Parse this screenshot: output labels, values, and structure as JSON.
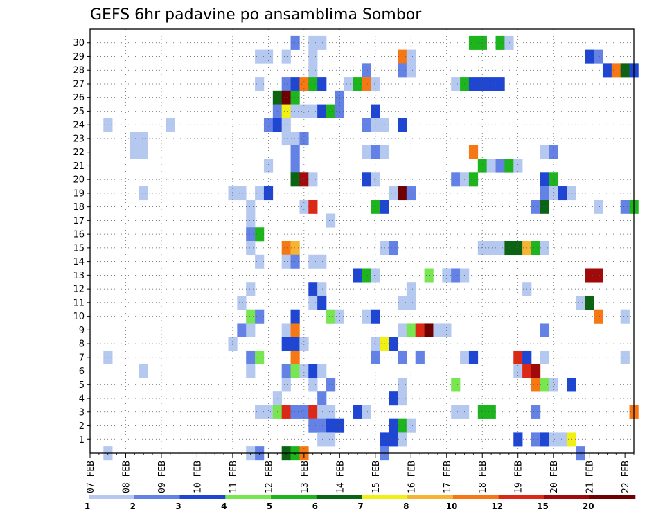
{
  "chart_data": {
    "type": "heatmap",
    "title": "GEFS 6hr padavine po ansamblima Sombor",
    "xlabel": "",
    "ylabel": "",
    "x_ticks": [
      "07 FEB",
      "08 FEB",
      "09 FEB",
      "10 FEB",
      "11 FEB",
      "12 FEB",
      "13 FEB",
      "14 FEB",
      "15 FEB",
      "16 FEB",
      "17 FEB",
      "18 FEB",
      "19 FEB",
      "20 FEB",
      "21 FEB",
      "22 FEB"
    ],
    "y_ticks": [
      "1",
      "2",
      "3",
      "4",
      "5",
      "6",
      "7",
      "8",
      "9",
      "10",
      "11",
      "12",
      "13",
      "14",
      "15",
      "16",
      "17",
      "18",
      "19",
      "20",
      "21",
      "22",
      "23",
      "24",
      "25",
      "26",
      "27",
      "28",
      "29",
      "30"
    ],
    "time_steps": 61,
    "members": 31,
    "colorbar": {
      "labels": [
        "1",
        "2",
        "3",
        "4",
        "5",
        "6",
        "7",
        "8",
        "10",
        "12",
        "15",
        "20"
      ],
      "colors": [
        "#b4c8f0",
        "#6482e6",
        "#1e46d2",
        "#78e650",
        "#1eb41e",
        "#0a6414",
        "#f0f014",
        "#f5b432",
        "#f57814",
        "#dc2814",
        "#a00a0a",
        "#6e0000"
      ]
    },
    "grid": true,
    "cells": [
      [
        30,
        23,
        2
      ],
      [
        30,
        25,
        1
      ],
      [
        30,
        26,
        1
      ],
      [
        30,
        43,
        5
      ],
      [
        30,
        44,
        5
      ],
      [
        30,
        46,
        5
      ],
      [
        30,
        47,
        1
      ],
      [
        29,
        19,
        1
      ],
      [
        29,
        20,
        1
      ],
      [
        29,
        22,
        1
      ],
      [
        29,
        25,
        1
      ],
      [
        29,
        35,
        9
      ],
      [
        29,
        36,
        1
      ],
      [
        29,
        56,
        3
      ],
      [
        29,
        57,
        2
      ],
      [
        28,
        25,
        1
      ],
      [
        28,
        31,
        2
      ],
      [
        28,
        35,
        2
      ],
      [
        28,
        36,
        1
      ],
      [
        28,
        58,
        3
      ],
      [
        28,
        59,
        9
      ],
      [
        28,
        60,
        6
      ],
      [
        28,
        61,
        3
      ],
      [
        27,
        19,
        1
      ],
      [
        27,
        22,
        2
      ],
      [
        27,
        23,
        3
      ],
      [
        27,
        24,
        9
      ],
      [
        27,
        25,
        5
      ],
      [
        27,
        26,
        3
      ],
      [
        27,
        29,
        1
      ],
      [
        27,
        30,
        5
      ],
      [
        27,
        31,
        9
      ],
      [
        27,
        32,
        1
      ],
      [
        27,
        41,
        1
      ],
      [
        27,
        42,
        5
      ],
      [
        27,
        43,
        3
      ],
      [
        27,
        44,
        3
      ],
      [
        27,
        45,
        3
      ],
      [
        27,
        46,
        3
      ],
      [
        26,
        21,
        6
      ],
      [
        26,
        22,
        12
      ],
      [
        26,
        23,
        5
      ],
      [
        26,
        28,
        2
      ],
      [
        25,
        21,
        2
      ],
      [
        25,
        22,
        7
      ],
      [
        25,
        23,
        1
      ],
      [
        25,
        24,
        1
      ],
      [
        25,
        25,
        1
      ],
      [
        25,
        26,
        3
      ],
      [
        25,
        27,
        5
      ],
      [
        25,
        28,
        2
      ],
      [
        25,
        32,
        3
      ],
      [
        24,
        2,
        1
      ],
      [
        24,
        9,
        1
      ],
      [
        24,
        20,
        2
      ],
      [
        24,
        21,
        3
      ],
      [
        24,
        22,
        1
      ],
      [
        24,
        31,
        2
      ],
      [
        24,
        32,
        1
      ],
      [
        24,
        33,
        1
      ],
      [
        24,
        35,
        3
      ],
      [
        23,
        5,
        1
      ],
      [
        23,
        6,
        1
      ],
      [
        23,
        22,
        1
      ],
      [
        23,
        23,
        1
      ],
      [
        23,
        24,
        2
      ],
      [
        22,
        5,
        1
      ],
      [
        22,
        6,
        1
      ],
      [
        22,
        23,
        2
      ],
      [
        22,
        31,
        1
      ],
      [
        22,
        32,
        2
      ],
      [
        22,
        33,
        1
      ],
      [
        22,
        43,
        9
      ],
      [
        22,
        51,
        1
      ],
      [
        22,
        52,
        2
      ],
      [
        21,
        20,
        1
      ],
      [
        21,
        23,
        2
      ],
      [
        21,
        44,
        5
      ],
      [
        21,
        45,
        1
      ],
      [
        21,
        46,
        2
      ],
      [
        21,
        47,
        5
      ],
      [
        21,
        48,
        1
      ],
      [
        20,
        23,
        6
      ],
      [
        20,
        24,
        11
      ],
      [
        20,
        25,
        1
      ],
      [
        20,
        31,
        3
      ],
      [
        20,
        32,
        1
      ],
      [
        20,
        41,
        2
      ],
      [
        20,
        42,
        1
      ],
      [
        20,
        43,
        5
      ],
      [
        20,
        51,
        3
      ],
      [
        20,
        52,
        5
      ],
      [
        19,
        6,
        1
      ],
      [
        19,
        16,
        1
      ],
      [
        19,
        17,
        1
      ],
      [
        19,
        19,
        1
      ],
      [
        19,
        20,
        3
      ],
      [
        19,
        34,
        1
      ],
      [
        19,
        35,
        12
      ],
      [
        19,
        36,
        2
      ],
      [
        19,
        51,
        2
      ],
      [
        19,
        52,
        1
      ],
      [
        19,
        53,
        3
      ],
      [
        19,
        54,
        1
      ],
      [
        18,
        18,
        1
      ],
      [
        18,
        24,
        1
      ],
      [
        18,
        25,
        10
      ],
      [
        18,
        32,
        5
      ],
      [
        18,
        33,
        3
      ],
      [
        18,
        50,
        2
      ],
      [
        18,
        51,
        6
      ],
      [
        18,
        57,
        1
      ],
      [
        18,
        60,
        2
      ],
      [
        18,
        61,
        5
      ],
      [
        17,
        18,
        1
      ],
      [
        17,
        27,
        1
      ],
      [
        16,
        18,
        2
      ],
      [
        16,
        19,
        5
      ],
      [
        15,
        18,
        1
      ],
      [
        15,
        22,
        9
      ],
      [
        15,
        23,
        8
      ],
      [
        15,
        33,
        1
      ],
      [
        15,
        34,
        2
      ],
      [
        15,
        44,
        1
      ],
      [
        15,
        45,
        1
      ],
      [
        15,
        46,
        1
      ],
      [
        15,
        47,
        6
      ],
      [
        15,
        48,
        6
      ],
      [
        15,
        49,
        8
      ],
      [
        15,
        50,
        5
      ],
      [
        15,
        51,
        1
      ],
      [
        14,
        19,
        1
      ],
      [
        14,
        22,
        1
      ],
      [
        14,
        23,
        2
      ],
      [
        14,
        25,
        1
      ],
      [
        14,
        26,
        1
      ],
      [
        13,
        30,
        3
      ],
      [
        13,
        31,
        5
      ],
      [
        13,
        32,
        1
      ],
      [
        13,
        38,
        4
      ],
      [
        13,
        40,
        1
      ],
      [
        13,
        41,
        2
      ],
      [
        13,
        42,
        1
      ],
      [
        13,
        56,
        11
      ],
      [
        13,
        57,
        11
      ],
      [
        12,
        18,
        1
      ],
      [
        12,
        25,
        3
      ],
      [
        12,
        26,
        1
      ],
      [
        12,
        36,
        1
      ],
      [
        12,
        49,
        1
      ],
      [
        11,
        17,
        1
      ],
      [
        11,
        25,
        1
      ],
      [
        11,
        26,
        3
      ],
      [
        11,
        35,
        1
      ],
      [
        11,
        36,
        1
      ],
      [
        11,
        55,
        1
      ],
      [
        11,
        56,
        6
      ],
      [
        10,
        18,
        4
      ],
      [
        10,
        19,
        2
      ],
      [
        10,
        23,
        3
      ],
      [
        10,
        27,
        4
      ],
      [
        10,
        28,
        1
      ],
      [
        10,
        31,
        1
      ],
      [
        10,
        32,
        3
      ],
      [
        10,
        57,
        9
      ],
      [
        10,
        60,
        1
      ],
      [
        9,
        17,
        2
      ],
      [
        9,
        18,
        1
      ],
      [
        9,
        22,
        1
      ],
      [
        9,
        23,
        9
      ],
      [
        9,
        35,
        1
      ],
      [
        9,
        36,
        4
      ],
      [
        9,
        37,
        10
      ],
      [
        9,
        38,
        12
      ],
      [
        9,
        39,
        1
      ],
      [
        9,
        40,
        1
      ],
      [
        9,
        51,
        2
      ],
      [
        8,
        16,
        1
      ],
      [
        8,
        22,
        3
      ],
      [
        8,
        23,
        3
      ],
      [
        8,
        24,
        1
      ],
      [
        8,
        32,
        1
      ],
      [
        8,
        33,
        7
      ],
      [
        8,
        34,
        3
      ],
      [
        7,
        2,
        1
      ],
      [
        7,
        18,
        2
      ],
      [
        7,
        19,
        4
      ],
      [
        7,
        23,
        9
      ],
      [
        7,
        32,
        2
      ],
      [
        7,
        35,
        2
      ],
      [
        7,
        37,
        2
      ],
      [
        7,
        42,
        1
      ],
      [
        7,
        43,
        3
      ],
      [
        7,
        48,
        10
      ],
      [
        7,
        49,
        3
      ],
      [
        7,
        51,
        1
      ],
      [
        7,
        60,
        1
      ],
      [
        6,
        6,
        1
      ],
      [
        6,
        18,
        1
      ],
      [
        6,
        22,
        2
      ],
      [
        6,
        23,
        4
      ],
      [
        6,
        24,
        1
      ],
      [
        6,
        25,
        3
      ],
      [
        6,
        26,
        1
      ],
      [
        6,
        48,
        1
      ],
      [
        6,
        49,
        10
      ],
      [
        6,
        50,
        11
      ],
      [
        5,
        22,
        1
      ],
      [
        5,
        25,
        1
      ],
      [
        5,
        27,
        2
      ],
      [
        5,
        35,
        1
      ],
      [
        5,
        41,
        4
      ],
      [
        5,
        50,
        9
      ],
      [
        5,
        51,
        4
      ],
      [
        5,
        52,
        1
      ],
      [
        5,
        54,
        3
      ],
      [
        4,
        21,
        1
      ],
      [
        4,
        26,
        2
      ],
      [
        4,
        34,
        3
      ],
      [
        4,
        35,
        1
      ],
      [
        3,
        19,
        1
      ],
      [
        3,
        20,
        1
      ],
      [
        3,
        21,
        4
      ],
      [
        3,
        22,
        10
      ],
      [
        3,
        23,
        2
      ],
      [
        3,
        24,
        2
      ],
      [
        3,
        25,
        10
      ],
      [
        3,
        26,
        1
      ],
      [
        3,
        27,
        1
      ],
      [
        3,
        30,
        3
      ],
      [
        3,
        31,
        1
      ],
      [
        3,
        41,
        1
      ],
      [
        3,
        42,
        1
      ],
      [
        3,
        44,
        5
      ],
      [
        3,
        45,
        5
      ],
      [
        3,
        50,
        2
      ],
      [
        3,
        61,
        9
      ],
      [
        2,
        25,
        2
      ],
      [
        2,
        26,
        2
      ],
      [
        2,
        27,
        3
      ],
      [
        2,
        28,
        3
      ],
      [
        2,
        34,
        3
      ],
      [
        2,
        35,
        5
      ],
      [
        2,
        36,
        1
      ],
      [
        1,
        26,
        1
      ],
      [
        1,
        27,
        1
      ],
      [
        1,
        33,
        3
      ],
      [
        1,
        34,
        3
      ],
      [
        1,
        35,
        1
      ],
      [
        1,
        48,
        3
      ],
      [
        1,
        50,
        2
      ],
      [
        1,
        51,
        3
      ],
      [
        1,
        52,
        1
      ],
      [
        1,
        53,
        1
      ],
      [
        1,
        54,
        7
      ],
      [
        0,
        2,
        1
      ],
      [
        0,
        18,
        1
      ],
      [
        0,
        19,
        2
      ],
      [
        0,
        22,
        6
      ],
      [
        0,
        23,
        5
      ],
      [
        0,
        24,
        9
      ],
      [
        0,
        33,
        2
      ],
      [
        0,
        55,
        2
      ]
    ]
  }
}
